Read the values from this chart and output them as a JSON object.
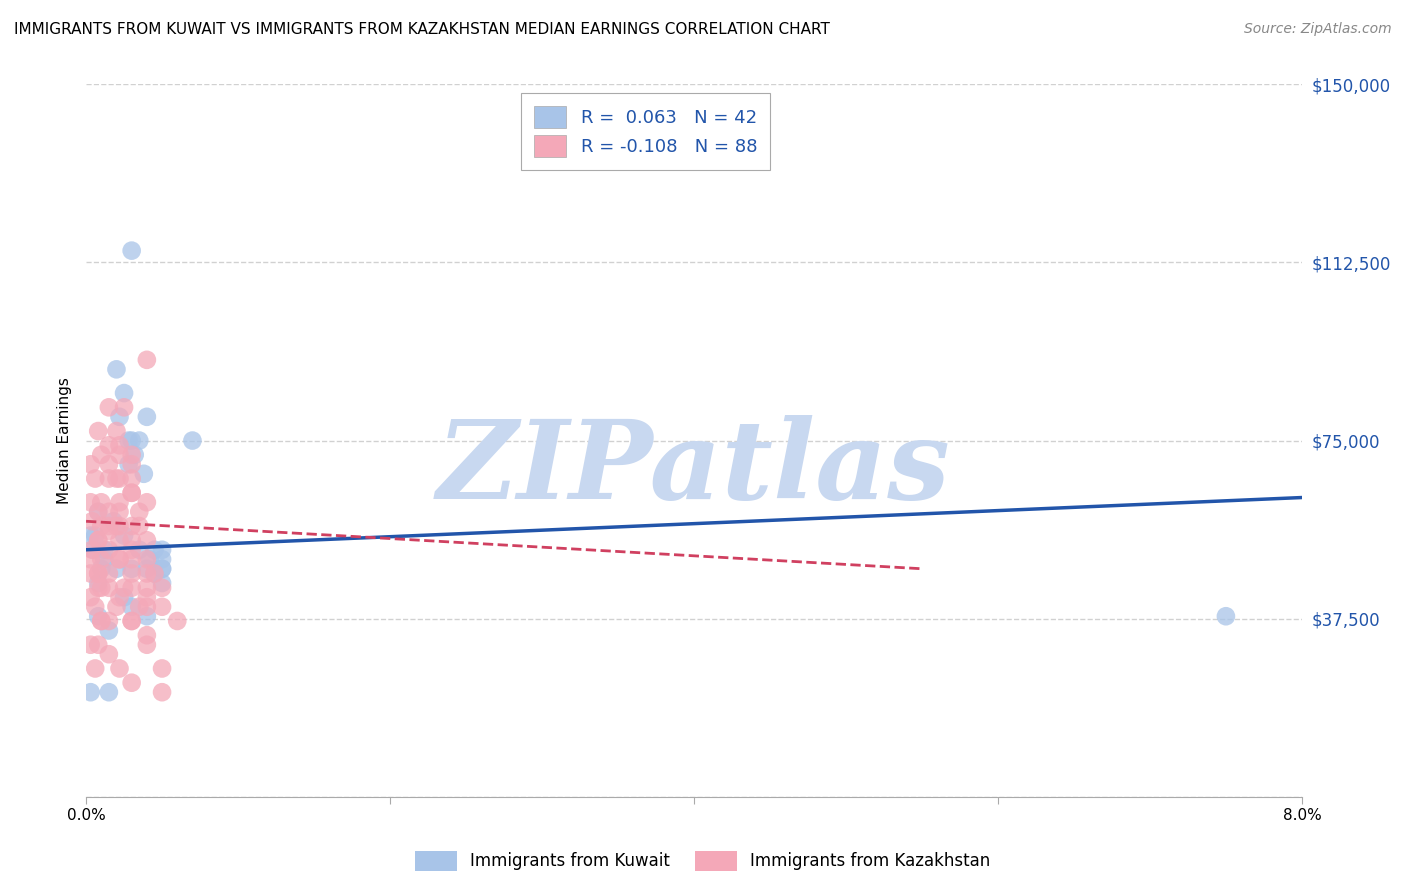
{
  "title": "IMMIGRANTS FROM KUWAIT VS IMMIGRANTS FROM KAZAKHSTAN MEDIAN EARNINGS CORRELATION CHART",
  "source": "Source: ZipAtlas.com",
  "ylabel": "Median Earnings",
  "y_ticks": [
    0,
    37500,
    75000,
    112500,
    150000
  ],
  "y_tick_labels": [
    "",
    "$37,500",
    "$75,000",
    "$112,500",
    "$150,000"
  ],
  "x_min": 0.0,
  "x_max": 0.08,
  "y_min": 0,
  "y_max": 150000,
  "kuwait_R": 0.063,
  "kuwait_N": 42,
  "kazakhstan_R": -0.108,
  "kazakhstan_N": 88,
  "kuwait_color": "#a8c4e8",
  "kazakhstan_color": "#f4a8b8",
  "kuwait_line_color": "#2255aa",
  "kazakhstan_line_color": "#d04060",
  "background_color": "#ffffff",
  "grid_color": "#cccccc",
  "title_fontsize": 11,
  "watermark_text": "ZIPatlas",
  "watermark_color": "#c8d8f0",
  "kuwait_points": [
    [
      0.0005,
      52000
    ],
    [
      0.001,
      48000
    ],
    [
      0.0008,
      45000
    ],
    [
      0.0012,
      50000
    ],
    [
      0.0006,
      55000
    ],
    [
      0.002,
      90000
    ],
    [
      0.0025,
      85000
    ],
    [
      0.0022,
      80000
    ],
    [
      0.003,
      75000
    ],
    [
      0.0028,
      70000
    ],
    [
      0.0035,
      75000
    ],
    [
      0.0038,
      68000
    ],
    [
      0.0032,
      72000
    ],
    [
      0.004,
      80000
    ],
    [
      0.0042,
      50000
    ],
    [
      0.0045,
      47000
    ],
    [
      0.005,
      50000
    ],
    [
      0.005,
      45000
    ],
    [
      0.005,
      48000
    ],
    [
      0.007,
      75000
    ],
    [
      0.0003,
      55000
    ],
    [
      0.0008,
      60000
    ],
    [
      0.0012,
      52000
    ],
    [
      0.0018,
      58000
    ],
    [
      0.002,
      48000
    ],
    [
      0.0025,
      55000
    ],
    [
      0.003,
      48000
    ],
    [
      0.0035,
      52000
    ],
    [
      0.004,
      48000
    ],
    [
      0.0045,
      52000
    ],
    [
      0.005,
      48000
    ],
    [
      0.005,
      52000
    ],
    [
      0.0008,
      38000
    ],
    [
      0.0015,
      35000
    ],
    [
      0.0025,
      42000
    ],
    [
      0.003,
      40000
    ],
    [
      0.004,
      38000
    ],
    [
      0.003,
      115000
    ],
    [
      0.0028,
      75000
    ],
    [
      0.0003,
      22000
    ],
    [
      0.0015,
      22000
    ],
    [
      0.075,
      38000
    ]
  ],
  "kazakhstan_points": [
    [
      0.0004,
      58000
    ],
    [
      0.0008,
      60000
    ],
    [
      0.0008,
      54000
    ],
    [
      0.001,
      62000
    ],
    [
      0.0015,
      60000
    ],
    [
      0.0015,
      56000
    ],
    [
      0.001,
      50000
    ],
    [
      0.0008,
      47000
    ],
    [
      0.0004,
      52000
    ],
    [
      0.0008,
      47000
    ],
    [
      0.001,
      72000
    ],
    [
      0.0015,
      70000
    ],
    [
      0.0015,
      67000
    ],
    [
      0.002,
      57000
    ],
    [
      0.0022,
      74000
    ],
    [
      0.0022,
      67000
    ],
    [
      0.0022,
      62000
    ],
    [
      0.0022,
      54000
    ],
    [
      0.0022,
      50000
    ],
    [
      0.003,
      72000
    ],
    [
      0.003,
      67000
    ],
    [
      0.003,
      64000
    ],
    [
      0.003,
      57000
    ],
    [
      0.003,
      50000
    ],
    [
      0.003,
      44000
    ],
    [
      0.0035,
      60000
    ],
    [
      0.004,
      50000
    ],
    [
      0.004,
      47000
    ],
    [
      0.004,
      40000
    ],
    [
      0.004,
      92000
    ],
    [
      0.0003,
      42000
    ],
    [
      0.0006,
      40000
    ],
    [
      0.001,
      37000
    ],
    [
      0.0015,
      44000
    ],
    [
      0.002,
      40000
    ],
    [
      0.0025,
      44000
    ],
    [
      0.003,
      37000
    ],
    [
      0.0035,
      40000
    ],
    [
      0.004,
      34000
    ],
    [
      0.004,
      44000
    ],
    [
      0.0003,
      32000
    ],
    [
      0.0006,
      27000
    ],
    [
      0.0015,
      30000
    ],
    [
      0.0022,
      27000
    ],
    [
      0.003,
      24000
    ],
    [
      0.0003,
      62000
    ],
    [
      0.0006,
      67000
    ],
    [
      0.001,
      57000
    ],
    [
      0.0015,
      74000
    ],
    [
      0.0022,
      60000
    ],
    [
      0.003,
      70000
    ],
    [
      0.004,
      62000
    ],
    [
      0.002,
      77000
    ],
    [
      0.0015,
      82000
    ],
    [
      0.0003,
      70000
    ],
    [
      0.0008,
      77000
    ],
    [
      0.001,
      44000
    ],
    [
      0.002,
      67000
    ],
    [
      0.0022,
      72000
    ],
    [
      0.003,
      64000
    ],
    [
      0.003,
      52000
    ],
    [
      0.0035,
      57000
    ],
    [
      0.004,
      54000
    ],
    [
      0.0045,
      47000
    ],
    [
      0.005,
      44000
    ],
    [
      0.005,
      40000
    ],
    [
      0.006,
      37000
    ],
    [
      0.0003,
      50000
    ],
    [
      0.0008,
      54000
    ],
    [
      0.0015,
      47000
    ],
    [
      0.0022,
      57000
    ],
    [
      0.003,
      47000
    ],
    [
      0.004,
      42000
    ],
    [
      0.0025,
      82000
    ],
    [
      0.0015,
      57000
    ],
    [
      0.0003,
      47000
    ],
    [
      0.0008,
      44000
    ],
    [
      0.0015,
      52000
    ],
    [
      0.0022,
      50000
    ],
    [
      0.003,
      54000
    ],
    [
      0.004,
      32000
    ],
    [
      0.005,
      27000
    ],
    [
      0.005,
      22000
    ],
    [
      0.003,
      37000
    ],
    [
      0.0022,
      42000
    ],
    [
      0.0015,
      37000
    ],
    [
      0.0008,
      32000
    ],
    [
      0.001,
      37000
    ]
  ],
  "kuwait_trendline": [
    [
      0.0,
      52000
    ],
    [
      0.08,
      63000
    ]
  ],
  "kazakhstan_trendline": [
    [
      0.0,
      58000
    ],
    [
      0.055,
      48000
    ]
  ]
}
